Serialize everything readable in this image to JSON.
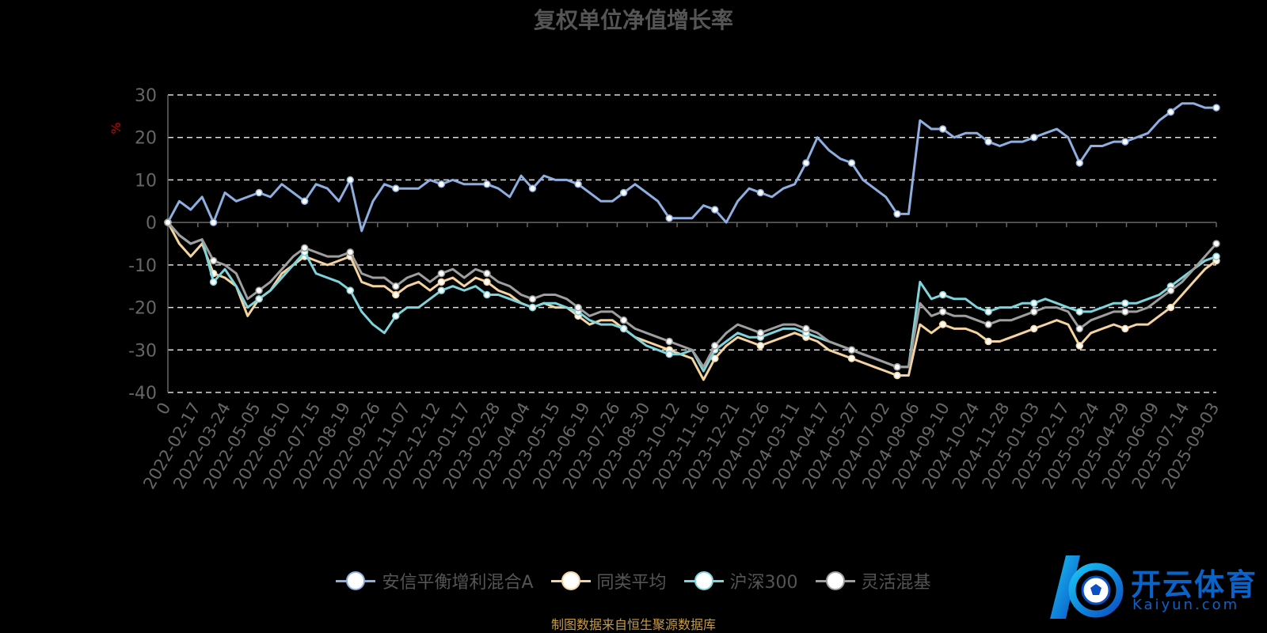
{
  "chart_data": {
    "type": "line",
    "title": "复权单位净值增长率",
    "ylabel": "%",
    "ylim": [
      -40,
      30
    ],
    "yticks": [
      30,
      20,
      10,
      0,
      -10,
      -20,
      -30,
      -40
    ],
    "grid": true,
    "legend_position": "bottom",
    "x_ticks": [
      "0",
      "2022-02-17",
      "2022-03-24",
      "2022-05-05",
      "2022-06-10",
      "2022-07-15",
      "2022-08-19",
      "2022-09-26",
      "2022-11-07",
      "2022-12-12",
      "2023-01-17",
      "2023-02-28",
      "2023-04-04",
      "2023-05-15",
      "2023-06-19",
      "2023-07-26",
      "2023-08-30",
      "2023-10-12",
      "2023-11-16",
      "2023-12-21",
      "2024-01-26",
      "2024-03-11",
      "2024-04-17",
      "2024-05-27",
      "2024-07-02",
      "2024-08-06",
      "2024-09-10",
      "2024-10-24",
      "2024-11-28",
      "2025-01-03",
      "2025-02-17",
      "2025-03-24",
      "2025-04-29",
      "2025-06-09",
      "2025-07-14",
      "2025-09-03"
    ],
    "series": [
      {
        "name": "安信平衡增利混合A",
        "color": "#8eaee0",
        "values": [
          0,
          5,
          3,
          6,
          0,
          7,
          5,
          6,
          7,
          6,
          9,
          7,
          5,
          9,
          8,
          5,
          10,
          -2,
          5,
          9,
          8,
          8,
          8,
          10,
          9,
          10,
          9,
          9,
          9,
          8,
          6,
          11,
          8,
          11,
          10,
          10,
          9,
          7,
          5,
          5,
          7,
          9,
          7,
          5,
          1,
          1,
          1,
          4,
          3,
          0,
          5,
          8,
          7,
          6,
          8,
          9,
          14,
          20,
          17,
          15,
          14,
          10,
          8,
          6,
          2,
          2,
          24,
          22,
          22,
          20,
          21,
          21,
          19,
          18,
          19,
          19,
          20,
          21,
          22,
          20,
          14,
          18,
          18,
          19,
          19,
          20,
          21,
          24,
          26,
          28,
          28,
          27,
          27
        ]
      },
      {
        "name": "同类平均",
        "color": "#f5d39e",
        "values": [
          0,
          -5,
          -8,
          -5,
          -12,
          -13,
          -15,
          -22,
          -18,
          -16,
          -12,
          -10,
          -8,
          -9,
          -10,
          -9,
          -8,
          -14,
          -15,
          -15,
          -17,
          -15,
          -14,
          -16,
          -14,
          -13,
          -15,
          -13,
          -14,
          -16,
          -17,
          -19,
          -20,
          -19,
          -20,
          -20,
          -22,
          -24,
          -23,
          -23,
          -25,
          -27,
          -28,
          -29,
          -30,
          -31,
          -32,
          -37,
          -32,
          -29,
          -27,
          -28,
          -29,
          -28,
          -27,
          -26,
          -27,
          -28,
          -30,
          -31,
          -32,
          -33,
          -34,
          -35,
          -36,
          -36,
          -24,
          -26,
          -24,
          -25,
          -25,
          -26,
          -28,
          -28,
          -27,
          -26,
          -25,
          -24,
          -23,
          -24,
          -29,
          -26,
          -25,
          -24,
          -25,
          -24,
          -24,
          -22,
          -20,
          -17,
          -14,
          -11,
          -9
        ]
      },
      {
        "name": "沪深300",
        "color": "#7fd3db",
        "values": [
          0,
          -3,
          -5,
          -4,
          -14,
          -11,
          -15,
          -20,
          -18,
          -16,
          -13,
          -10,
          -7,
          -12,
          -13,
          -14,
          -16,
          -21,
          -24,
          -26,
          -22,
          -20,
          -20,
          -18,
          -16,
          -15,
          -16,
          -15,
          -17,
          -17,
          -18,
          -19,
          -20,
          -19,
          -19,
          -20,
          -21,
          -23,
          -24,
          -24,
          -25,
          -27,
          -29,
          -30,
          -31,
          -31,
          -30,
          -35,
          -30,
          -28,
          -26,
          -27,
          -27,
          -26,
          -25,
          -25,
          -26,
          -27,
          -28,
          -29,
          -30,
          -31,
          -32,
          -33,
          -34,
          -34,
          -14,
          -18,
          -17,
          -18,
          -18,
          -20,
          -21,
          -20,
          -20,
          -19,
          -19,
          -18,
          -19,
          -20,
          -21,
          -21,
          -20,
          -19,
          -19,
          -19,
          -18,
          -17,
          -15,
          -13,
          -11,
          -9,
          -8
        ]
      },
      {
        "name": "灵活混基",
        "color": "#9e9e9e",
        "values": [
          0,
          -3,
          -5,
          -4,
          -9,
          -10,
          -12,
          -18,
          -16,
          -14,
          -11,
          -8,
          -6,
          -7,
          -8,
          -8,
          -7,
          -12,
          -13,
          -13,
          -15,
          -13,
          -12,
          -14,
          -12,
          -11,
          -13,
          -11,
          -12,
          -14,
          -15,
          -17,
          -18,
          -17,
          -17,
          -18,
          -20,
          -22,
          -21,
          -21,
          -23,
          -25,
          -26,
          -27,
          -28,
          -29,
          -30,
          -34,
          -29,
          -26,
          -24,
          -25,
          -26,
          -25,
          -24,
          -24,
          -25,
          -26,
          -28,
          -29,
          -30,
          -31,
          -32,
          -33,
          -34,
          -34,
          -19,
          -22,
          -21,
          -22,
          -22,
          -23,
          -24,
          -23,
          -23,
          -22,
          -21,
          -20,
          -20,
          -21,
          -25,
          -23,
          -22,
          -21,
          -21,
          -21,
          -20,
          -18,
          -16,
          -14,
          -11,
          -8,
          -5
        ]
      }
    ]
  },
  "footer": {
    "source": "制图数据来自恒生聚源数据库"
  },
  "logo": {
    "text": "开云体育",
    "sub": "Kaiyun.com"
  },
  "colors": {
    "background": "#000000",
    "grid": "#dddddd",
    "title": "#555555",
    "source": "#c89b45"
  }
}
